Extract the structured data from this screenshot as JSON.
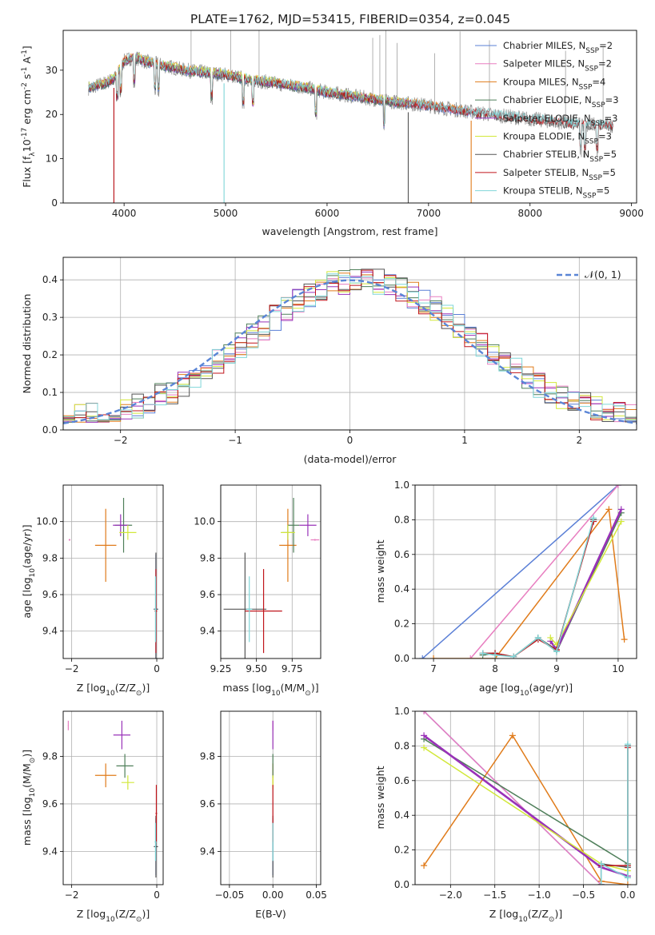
{
  "title": "PLATE=1762, MJD=53415, FIBERID=0354, z=0.045",
  "colors": {
    "Chabrier MILES": "#5a7fd6",
    "Salpeter MILES": "#e87ec0",
    "Kroupa MILES": "#e07b1a",
    "Chabrier ELODIE": "#4f7f5a",
    "Salpeter ELODIE": "#9932b8",
    "Kroupa ELODIE": "#d2e83a",
    "Chabrier STELIB": "#555555",
    "Salpeter STELIB": "#c0151b",
    "Kroupa STELIB": "#7fd6d8"
  },
  "chart_data": [
    {
      "id": "spectrum",
      "type": "line",
      "xlabel": "wavelength [Angstrom, rest frame]",
      "ylabel": "Flux [f",
      "ylabel_sub": "λ",
      "ylabel_rest": "10",
      "ylabel_sup1": "-17",
      "ylabel_unit": " erg cm",
      "ylabel_sup2": "-2",
      "ylabel_unit2": " s",
      "ylabel_sup3": "-1",
      "ylabel_unit3": " A",
      "ylabel_sup4": "-1",
      "ylabel_end": "]",
      "xlim": [
        3400,
        9050
      ],
      "ylim": [
        0,
        39
      ],
      "xticks": [
        4000,
        5000,
        6000,
        7000,
        8000,
        9000
      ],
      "yticks": [
        0,
        10,
        20,
        30
      ],
      "legend": [
        {
          "name": "Chabrier MILES, N",
          "sub": "SSP",
          "rest": "=2",
          "model": "Chabrier MILES"
        },
        {
          "name": "Salpeter MILES, N",
          "sub": "SSP",
          "rest": "=2",
          "model": "Salpeter MILES"
        },
        {
          "name": "Kroupa MILES, N",
          "sub": "SSP",
          "rest": "=4",
          "model": "Kroupa MILES"
        },
        {
          "name": "Chabrier ELODIE, N",
          "sub": "SSP",
          "rest": "=3",
          "model": "Chabrier ELODIE"
        },
        {
          "name": "Salpeter ELODIE, N",
          "sub": "SSP",
          "rest": "=3",
          "model": "Salpeter ELODIE"
        },
        {
          "name": "Kroupa ELODIE, N",
          "sub": "SSP",
          "rest": "=3",
          "model": "Kroupa ELODIE"
        },
        {
          "name": "Chabrier STELIB, N",
          "sub": "SSP",
          "rest": "=5",
          "model": "Chabrier STELIB"
        },
        {
          "name": "Salpeter STELIB, N",
          "sub": "SSP",
          "rest": "=5",
          "model": "Salpeter STELIB"
        },
        {
          "name": "Kroupa STELIB, N",
          "sub": "SSP",
          "rest": "=5",
          "model": "Kroupa STELIB"
        }
      ],
      "continuum": [
        [
          3650,
          26
        ],
        [
          3800,
          27
        ],
        [
          3900,
          28
        ],
        [
          4000,
          32
        ],
        [
          4100,
          33
        ],
        [
          4200,
          32
        ],
        [
          4400,
          31
        ],
        [
          4600,
          30
        ],
        [
          4800,
          29.5
        ],
        [
          5000,
          29
        ],
        [
          5200,
          28
        ],
        [
          5500,
          27
        ],
        [
          5800,
          26
        ],
        [
          6000,
          25
        ],
        [
          6300,
          24
        ],
        [
          6600,
          23
        ],
        [
          6800,
          22.5
        ],
        [
          7000,
          22
        ],
        [
          7300,
          21
        ],
        [
          7600,
          20
        ],
        [
          8000,
          19
        ],
        [
          8400,
          18
        ],
        [
          8820,
          17.5
        ]
      ],
      "model_ranges": {
        "Chabrier MILES": [
          3650,
          7420
        ],
        "Salpeter MILES": [
          3650,
          7420
        ],
        "Kroupa MILES": [
          3650,
          7420
        ],
        "Chabrier ELODIE": [
          3650,
          6800
        ],
        "Salpeter ELODIE": [
          3650,
          6800
        ],
        "Kroupa ELODIE": [
          3650,
          6800
        ],
        "Chabrier STELIB": [
          3650,
          8820
        ],
        "Salpeter STELIB": [
          3650,
          8820
        ],
        "Kroupa STELIB": [
          3650,
          8820
        ]
      },
      "drops": [
        {
          "x": 3900,
          "models": [
            "Chabrier STELIB",
            "Salpeter STELIB"
          ]
        },
        {
          "x": 4985,
          "models": [
            "Kroupa STELIB"
          ]
        },
        {
          "x": 6800,
          "models": [
            "Chabrier STELIB"
          ]
        },
        {
          "x": 7420,
          "models": [
            "Kroupa MILES"
          ]
        }
      ]
    },
    {
      "id": "residuals",
      "type": "histogram",
      "xlabel": "(data-model)/error",
      "ylabel": "Normed distribution",
      "xlim": [
        -2.5,
        2.5
      ],
      "ylim": [
        0,
        0.46
      ],
      "xticks": [
        -2,
        -1,
        0,
        1,
        2
      ],
      "yticks": [
        0.0,
        0.1,
        0.2,
        0.3,
        0.4
      ],
      "legend_label": "𝒩(0, 1)",
      "bin_width": 0.1
    },
    {
      "id": "age_vs_Z",
      "type": "errorbar",
      "xlabel": "Z [log",
      "xlabel_sub": "10",
      "xlabel_rest": "(Z/Z",
      "xlabel_sub2": "⊙",
      "xlabel_end": ")]",
      "ylabel": "age  [log",
      "ylabel_sub": "10",
      "ylabel_rest": "(age/yr)]",
      "xlim": [
        -2.2,
        0.15
      ],
      "ylim": [
        9.25,
        10.2
      ],
      "xticks": [
        -2,
        0
      ],
      "yticks": [
        9.4,
        9.6,
        9.8,
        10.0
      ],
      "points": [
        {
          "model": "Chabrier MILES",
          "x": -0.02,
          "y": 9.52,
          "xerr": 0.05,
          "yerr": 0.3
        },
        {
          "model": "Salpeter MILES",
          "x": -2.05,
          "y": 9.9,
          "xerr": 0.02,
          "yerr": 0.005
        },
        {
          "model": "Kroupa MILES",
          "x": -1.2,
          "y": 9.87,
          "xerr": 0.25,
          "yerr": 0.2
        },
        {
          "model": "Chabrier ELODIE",
          "x": -0.78,
          "y": 9.98,
          "xerr": 0.2,
          "yerr": 0.15
        },
        {
          "model": "Salpeter ELODIE",
          "x": -0.85,
          "y": 9.98,
          "xerr": 0.18,
          "yerr": 0.06
        },
        {
          "model": "Kroupa ELODIE",
          "x": -0.68,
          "y": 9.94,
          "xerr": 0.2,
          "yerr": 0.04
        },
        {
          "model": "Chabrier STELIB",
          "x": -0.02,
          "y": 9.52,
          "xerr": 0.05,
          "yerr": 0.31
        },
        {
          "model": "Salpeter STELIB",
          "x": -0.02,
          "y": 9.51,
          "xerr": 0.03,
          "yerr": 0.23
        },
        {
          "model": "Kroupa STELIB",
          "x": -0.03,
          "y": 9.52,
          "xerr": 0.02,
          "yerr": 0.18
        }
      ]
    },
    {
      "id": "age_vs_mass",
      "type": "errorbar",
      "xlabel": "mass [log",
      "xlabel_sub": "10",
      "xlabel_rest": "(M/M",
      "xlabel_sub2": "⊙",
      "xlabel_end": ")]",
      "xlim": [
        9.25,
        9.95
      ],
      "ylim": [
        9.25,
        10.2
      ],
      "xticks": [
        9.25,
        9.5,
        9.75
      ],
      "xticklabels": [
        "9.25",
        "9.50",
        "9.75"
      ],
      "yticks": [
        9.4,
        9.6,
        9.8,
        10.0
      ],
      "points": [
        {
          "model": "Chabrier MILES",
          "x": 9.72,
          "y": 9.94,
          "xerr": 0.04,
          "yerr": 0.04
        },
        {
          "model": "Salpeter MILES",
          "x": 9.91,
          "y": 9.9,
          "xerr": 0.03,
          "yerr": 0.005
        },
        {
          "model": "Kroupa MILES",
          "x": 9.72,
          "y": 9.87,
          "xerr": 0.06,
          "yerr": 0.2
        },
        {
          "model": "Chabrier ELODIE",
          "x": 9.76,
          "y": 9.98,
          "xerr": 0.04,
          "yerr": 0.15
        },
        {
          "model": "Salpeter ELODIE",
          "x": 9.86,
          "y": 9.98,
          "xerr": 0.06,
          "yerr": 0.06
        },
        {
          "model": "Kroupa ELODIE",
          "x": 9.72,
          "y": 9.94,
          "xerr": 0.05,
          "yerr": 0.04
        },
        {
          "model": "Chabrier STELIB",
          "x": 9.42,
          "y": 9.52,
          "xerr": 0.15,
          "yerr": 0.31
        },
        {
          "model": "Salpeter STELIB",
          "x": 9.55,
          "y": 9.51,
          "xerr": 0.13,
          "yerr": 0.23
        },
        {
          "model": "Kroupa STELIB",
          "x": 9.45,
          "y": 9.52,
          "xerr": 0.02,
          "yerr": 0.18
        }
      ]
    },
    {
      "id": "weight_vs_age",
      "type": "line",
      "xlabel": "age  [log",
      "xlabel_sub": "10",
      "xlabel_rest": "(age/yr)]",
      "ylabel": "mass weight",
      "xlim": [
        6.7,
        10.3
      ],
      "ylim": [
        0,
        1
      ],
      "xticks": [
        7,
        8,
        9,
        10
      ],
      "yticks": [
        0.0,
        0.2,
        0.4,
        0.6,
        0.8,
        1.0
      ],
      "series": [
        {
          "model": "Chabrier MILES",
          "x": [
            6.82,
            10.0
          ],
          "y": [
            0.0,
            1.0
          ]
        },
        {
          "model": "Salpeter MILES",
          "x": [
            7.6,
            10.0
          ],
          "y": [
            0.0,
            1.0
          ]
        },
        {
          "model": "Kroupa MILES",
          "x": [
            7.0,
            8.0,
            9.85,
            10.1
          ],
          "y": [
            0.0,
            0.0,
            0.86,
            0.11
          ]
        },
        {
          "model": "Chabrier ELODIE",
          "x": [
            7.8,
            8.0,
            8.3,
            8.7,
            9.0,
            10.05
          ],
          "y": [
            0.02,
            0.03,
            0.01,
            0.12,
            0.04,
            0.84
          ]
        },
        {
          "model": "Salpeter ELODIE",
          "x": [
            8.9,
            9.0,
            10.05
          ],
          "y": [
            0.1,
            0.05,
            0.86
          ]
        },
        {
          "model": "Kroupa ELODIE",
          "x": [
            8.9,
            9.0,
            10.05
          ],
          "y": [
            0.12,
            0.08,
            0.79
          ]
        },
        {
          "model": "Chabrier STELIB",
          "x": [
            7.8,
            8.0,
            8.3,
            8.7,
            9.0,
            9.6,
            9.6
          ],
          "y": [
            0.03,
            0.03,
            0.01,
            0.12,
            0.05,
            0.8,
            0.8
          ]
        },
        {
          "model": "Salpeter STELIB",
          "x": [
            7.8,
            8.0,
            8.3,
            8.7,
            9.0,
            9.6
          ],
          "y": [
            0.03,
            0.03,
            0.01,
            0.11,
            0.05,
            0.79
          ]
        },
        {
          "model": "Kroupa STELIB",
          "x": [
            7.8,
            8.0,
            8.3,
            8.7,
            9.0,
            9.6
          ],
          "y": [
            0.03,
            0.02,
            0.01,
            0.12,
            0.04,
            0.81
          ]
        }
      ]
    },
    {
      "id": "mass_vs_Z",
      "type": "errorbar",
      "xlabel": "Z [log",
      "xlabel_sub": "10",
      "xlabel_rest": "(Z/Z",
      "xlabel_sub2": "⊙",
      "xlabel_end": ")]",
      "ylabel": "mass [log",
      "ylabel_sub": "10",
      "ylabel_rest": "(M/M",
      "ylabel_sub2": "⊙",
      "ylabel_end": ")]",
      "xlim": [
        -2.2,
        0.15
      ],
      "ylim": [
        9.26,
        9.99
      ],
      "xticks": [
        -2,
        0
      ],
      "yticks": [
        9.4,
        9.6,
        9.8
      ],
      "points": [
        {
          "model": "Chabrier MILES",
          "x": -0.02,
          "y": 9.42,
          "xerr": 0.03,
          "yerr": 0.12
        },
        {
          "model": "Salpeter MILES",
          "x": -2.08,
          "y": 9.93,
          "xerr": 0.01,
          "yerr": 0.02
        },
        {
          "model": "Kroupa MILES",
          "x": -1.2,
          "y": 9.72,
          "xerr": 0.25,
          "yerr": 0.05
        },
        {
          "model": "Chabrier ELODIE",
          "x": -0.75,
          "y": 9.76,
          "xerr": 0.2,
          "yerr": 0.05
        },
        {
          "model": "Salpeter ELODIE",
          "x": -0.82,
          "y": 9.89,
          "xerr": 0.2,
          "yerr": 0.06
        },
        {
          "model": "Kroupa ELODIE",
          "x": -0.68,
          "y": 9.69,
          "xerr": 0.15,
          "yerr": 0.03
        },
        {
          "model": "Chabrier STELIB",
          "x": -0.02,
          "y": 9.42,
          "xerr": 0.05,
          "yerr": 0.13
        },
        {
          "model": "Salpeter STELIB",
          "x": -0.01,
          "y": 9.56,
          "xerr": 0.02,
          "yerr": 0.12
        },
        {
          "model": "Kroupa STELIB",
          "x": -0.03,
          "y": 9.44,
          "xerr": 0.02,
          "yerr": 0.08
        }
      ]
    },
    {
      "id": "mass_vs_ebv",
      "type": "errorbar",
      "xlabel": "E(B-V)",
      "xlim": [
        -0.06,
        0.055
      ],
      "ylim": [
        9.26,
        9.99
      ],
      "xticks": [
        -0.05,
        0.0,
        0.05
      ],
      "xticklabels": [
        "−0.05",
        "0.00",
        "0.05"
      ],
      "yticks": [
        9.4,
        9.6,
        9.8
      ],
      "points": [
        {
          "model": "Chabrier MILES",
          "x": 0.0,
          "y": 9.42,
          "xerr": 0.0,
          "yerr": 0.12
        },
        {
          "model": "Salpeter MILES",
          "x": 0.0,
          "y": 9.93,
          "xerr": 0.0,
          "yerr": 0.02
        },
        {
          "model": "Kroupa MILES",
          "x": 0.0,
          "y": 9.72,
          "xerr": 0.0,
          "yerr": 0.05
        },
        {
          "model": "Chabrier ELODIE",
          "x": 0.0,
          "y": 9.76,
          "xerr": 0.0,
          "yerr": 0.05
        },
        {
          "model": "Salpeter ELODIE",
          "x": 0.0,
          "y": 9.89,
          "xerr": 0.0,
          "yerr": 0.06
        },
        {
          "model": "Kroupa ELODIE",
          "x": 0.0,
          "y": 9.69,
          "xerr": 0.0,
          "yerr": 0.03
        },
        {
          "model": "Chabrier STELIB",
          "x": 0.0,
          "y": 9.42,
          "xerr": 0.0,
          "yerr": 0.13
        },
        {
          "model": "Salpeter STELIB",
          "x": 0.0,
          "y": 9.56,
          "xerr": 0.0,
          "yerr": 0.12
        },
        {
          "model": "Kroupa STELIB",
          "x": 0.0,
          "y": 9.44,
          "xerr": 0.0,
          "yerr": 0.08
        }
      ]
    },
    {
      "id": "weight_vs_Z",
      "type": "line",
      "xlabel": "Z [log",
      "xlabel_sub": "10",
      "xlabel_rest": "(Z/Z",
      "xlabel_sub2": "⊙",
      "xlabel_end": ")]",
      "ylabel": "mass weight",
      "xlim": [
        -2.4,
        0.1
      ],
      "ylim": [
        0,
        1
      ],
      "xticks": [
        -2.0,
        -1.5,
        -1.0,
        -0.5,
        0.0
      ],
      "xticklabels": [
        "−2.0",
        "−1.5",
        "−1.0",
        "−0.5",
        "0.0"
      ],
      "yticks": [
        0.0,
        0.2,
        0.4,
        0.6,
        0.8,
        1.0
      ],
      "series": [
        {
          "model": "Chabrier MILES",
          "x": [
            -2.3,
            -0.3
          ],
          "y": [
            1.0,
            0.0
          ]
        },
        {
          "model": "Salpeter MILES",
          "x": [
            -2.3,
            -0.3
          ],
          "y": [
            1.0,
            0.0
          ]
        },
        {
          "model": "Kroupa MILES",
          "x": [
            -2.3,
            -1.3,
            -0.3,
            0.0
          ],
          "y": [
            0.11,
            0.86,
            0.02,
            0.0
          ]
        },
        {
          "model": "Chabrier ELODIE",
          "x": [
            -2.3,
            0.0,
            0.0
          ],
          "y": [
            0.84,
            0.12,
            0.04
          ]
        },
        {
          "model": "Salpeter ELODIE",
          "x": [
            -2.3,
            -0.3,
            0.0
          ],
          "y": [
            0.86,
            0.1,
            0.05
          ]
        },
        {
          "model": "Kroupa ELODIE",
          "x": [
            -2.3,
            -0.3,
            0.0
          ],
          "y": [
            0.79,
            0.12,
            0.08
          ]
        },
        {
          "model": "Chabrier STELIB",
          "x": [
            -0.3,
            -0.3,
            0.0,
            0.0
          ],
          "y": [
            0.0,
            0.12,
            0.1,
            0.8
          ]
        },
        {
          "model": "Salpeter STELIB",
          "x": [
            -0.3,
            -0.3,
            0.0,
            0.0
          ],
          "y": [
            0.0,
            0.11,
            0.11,
            0.79
          ]
        },
        {
          "model": "Kroupa STELIB",
          "x": [
            -0.3,
            -0.3,
            0.0,
            0.0
          ],
          "y": [
            0.0,
            0.12,
            0.04,
            0.81
          ]
        }
      ]
    }
  ]
}
